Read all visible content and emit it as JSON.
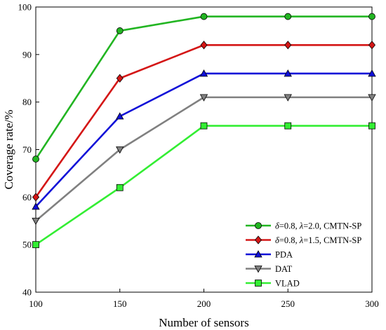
{
  "chart_data": {
    "type": "line",
    "title": "",
    "xlabel": "Number of sensors",
    "ylabel": "Coverage rate/%",
    "x": [
      100,
      150,
      200,
      250,
      300
    ],
    "xlim": [
      100,
      300
    ],
    "ylim": [
      40,
      100
    ],
    "xticks": [
      "100",
      "150",
      "200",
      "250",
      "300"
    ],
    "yticks": [
      "40",
      "50",
      "60",
      "70",
      "80",
      "90",
      "100"
    ],
    "grid": false,
    "legend_position": "bottom-right",
    "series": [
      {
        "name": "δ=0.8, λ=2.0, CMTN-SP",
        "legend_parts": [
          {
            "t": "δ",
            "i": true
          },
          {
            "t": "=0.8, ",
            "i": false
          },
          {
            "t": "λ",
            "i": true
          },
          {
            "t": "=2.0, CMTN-SP",
            "i": false
          }
        ],
        "color": "#22b522",
        "marker": "circle",
        "values": [
          68,
          95,
          98,
          98,
          98
        ]
      },
      {
        "name": "δ=0.8, λ=1.5, CMTN-SP",
        "legend_parts": [
          {
            "t": "δ",
            "i": true
          },
          {
            "t": "=0.8, ",
            "i": false
          },
          {
            "t": "λ",
            "i": true
          },
          {
            "t": "=1.5, CMTN-SP",
            "i": false
          }
        ],
        "color": "#d41616",
        "marker": "diamond",
        "values": [
          60,
          85,
          92,
          92,
          92
        ]
      },
      {
        "name": "PDA",
        "legend_parts": [
          {
            "t": "PDA",
            "i": false
          }
        ],
        "color": "#1010d8",
        "marker": "triangle-up",
        "values": [
          58,
          77,
          86,
          86,
          86
        ]
      },
      {
        "name": "DAT",
        "legend_parts": [
          {
            "t": "DAT",
            "i": false
          }
        ],
        "color": "#808080",
        "marker": "triangle-down",
        "values": [
          55,
          70,
          81,
          81,
          81
        ]
      },
      {
        "name": "VLAD",
        "legend_parts": [
          {
            "t": "VLAD",
            "i": false
          }
        ],
        "color": "#33ee33",
        "marker": "square",
        "values": [
          50,
          62,
          75,
          75,
          75
        ]
      }
    ]
  }
}
